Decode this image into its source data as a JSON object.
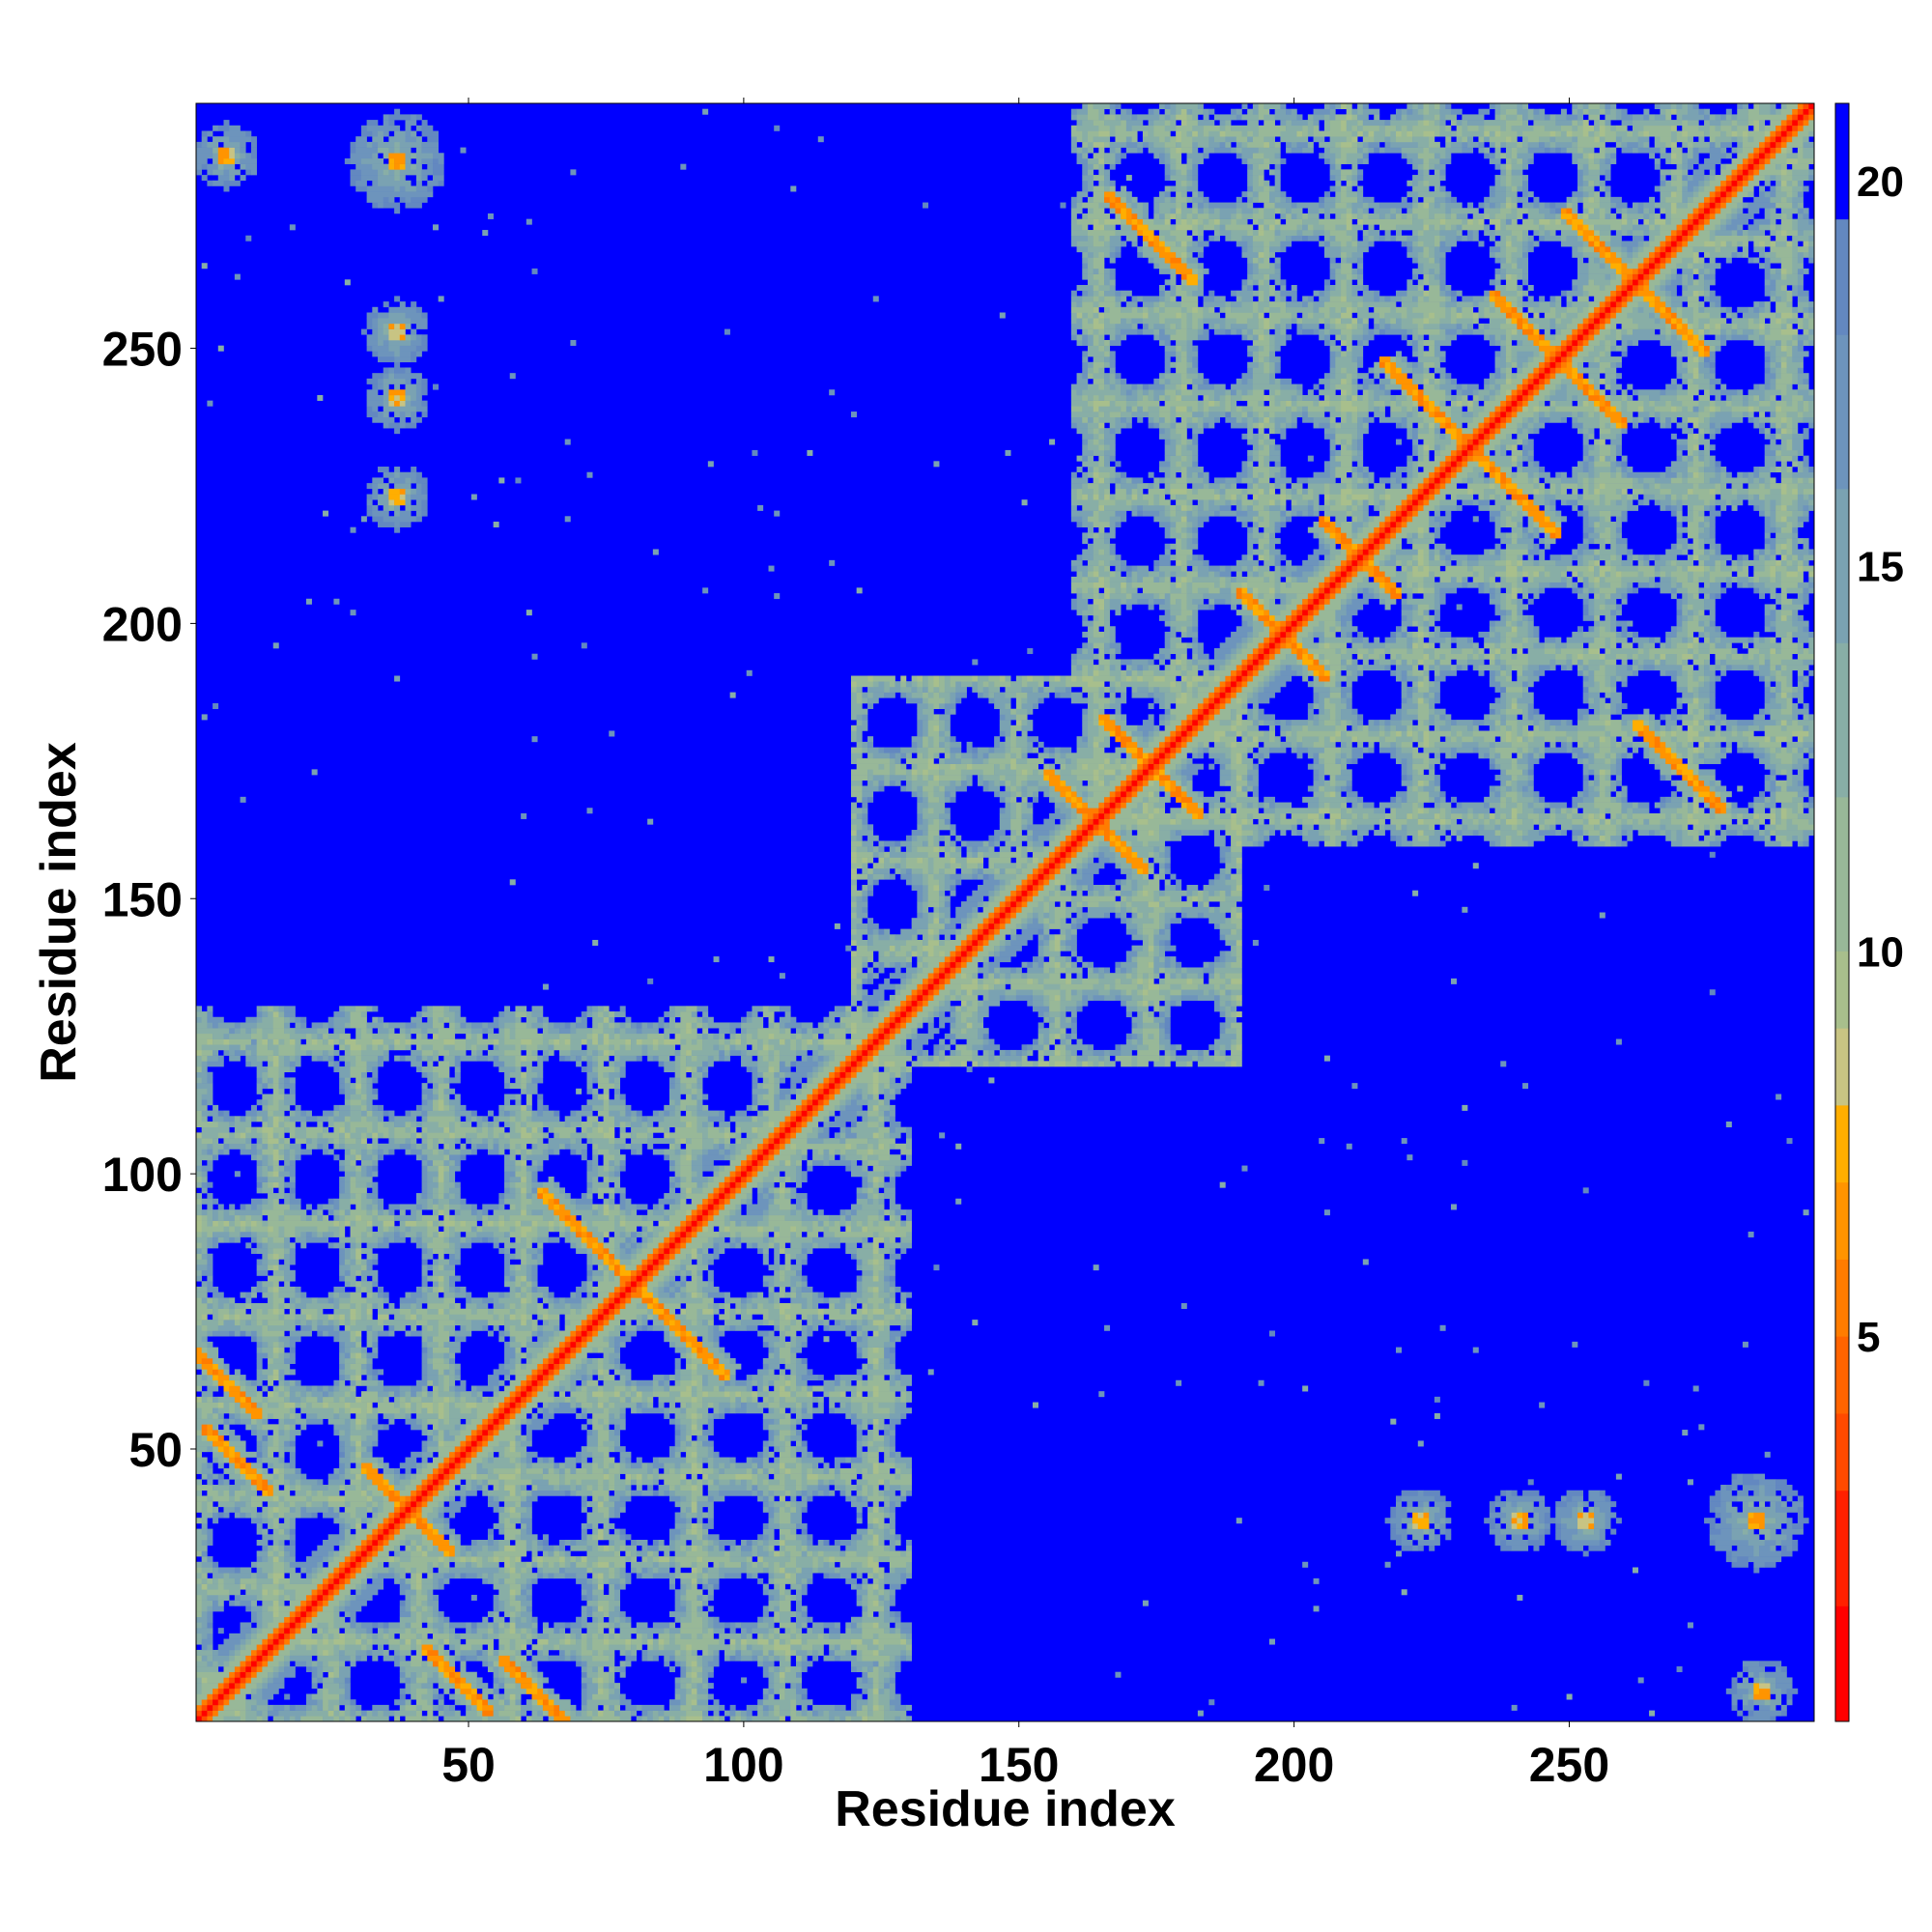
{
  "chart_data": {
    "type": "heatmap",
    "title": "",
    "xlabel": "Residue index",
    "ylabel": "Residue index",
    "xlim": [
      1,
      294
    ],
    "ylim": [
      1,
      294
    ],
    "x_ticks": [
      50,
      100,
      150,
      200,
      250
    ],
    "y_ticks": [
      50,
      100,
      150,
      200,
      250
    ],
    "value_description": "pairwise residue distance, capped at 21",
    "colorbar": {
      "range": [
        0,
        21
      ],
      "ticks": [
        5,
        10,
        15,
        20
      ],
      "levels": [
        {
          "max": 1.5,
          "color": "#ff0000"
        },
        {
          "max": 3.0,
          "color": "#ff2000"
        },
        {
          "max": 4.0,
          "color": "#ff4a00"
        },
        {
          "max": 5.0,
          "color": "#ff6400"
        },
        {
          "max": 6.0,
          "color": "#ff7c00"
        },
        {
          "max": 7.0,
          "color": "#ff9400"
        },
        {
          "max": 8.0,
          "color": "#ffae00"
        },
        {
          "max": 9.0,
          "color": "#c8c483"
        },
        {
          "max": 10.0,
          "color": "#a8bf8c"
        },
        {
          "max": 12.0,
          "color": "#98b898"
        },
        {
          "max": 14.0,
          "color": "#88aea6"
        },
        {
          "max": 16.0,
          "color": "#7aa2b2"
        },
        {
          "max": 18.0,
          "color": "#6d94bc"
        },
        {
          "max": 19.5,
          "color": "#6388c0"
        },
        {
          "max": 21.0,
          "color": "#0000ff"
        }
      ]
    },
    "contact_regions": {
      "main_diagonal": {
        "from": 1,
        "to": 294
      },
      "antiparallel_strand_pairs": [
        {
          "center": [
            39,
            39
          ],
          "half_length": 8
        },
        {
          "center": [
            72,
            88
          ],
          "half_length": 9
        },
        {
          "center": [
            88,
            72
          ],
          "half_length": 9
        },
        {
          "center": [
            164,
            164
          ],
          "half_length": 9
        },
        {
          "center": [
            174,
            174
          ],
          "half_length": 9
        },
        {
          "center": [
            198,
            198
          ],
          "half_length": 8
        },
        {
          "center": [
            212,
            212
          ],
          "half_length": 7
        },
        {
          "center": [
            232,
            232
          ],
          "half_length": 16
        },
        {
          "center": [
            248,
            248
          ],
          "half_length": 12
        },
        {
          "center": [
            262,
            262
          ],
          "half_length": 13
        },
        {
          "center": [
            174,
            270
          ],
          "half_length": 8
        },
        {
          "center": [
            270,
            174
          ],
          "half_length": 8
        },
        {
          "center": [
            8,
            48
          ],
          "half_length": 6
        },
        {
          "center": [
            48,
            8
          ],
          "half_length": 6
        },
        {
          "center": [
            6,
            62
          ],
          "half_length": 6
        },
        {
          "center": [
            62,
            6
          ],
          "half_length": 6
        },
        {
          "center": [
            46,
            8
          ],
          "half_length": 6
        },
        {
          "center": [
            64,
            8
          ],
          "half_length": 6
        },
        {
          "center": [
            88,
            64
          ],
          "half_length": 6
        }
      ],
      "contact_blobs": [
        {
          "center": [
            37,
            223
          ],
          "radius": 6
        },
        {
          "center": [
            37,
            241
          ],
          "radius": 6
        },
        {
          "center": [
            37,
            253
          ],
          "radius": 6
        },
        {
          "center": [
            223,
            37
          ],
          "radius": 6
        },
        {
          "center": [
            241,
            37
          ],
          "radius": 6
        },
        {
          "center": [
            253,
            37
          ],
          "radius": 6
        },
        {
          "center": [
            6,
            285
          ],
          "radius": 6
        },
        {
          "center": [
            285,
            6
          ],
          "radius": 6
        },
        {
          "center": [
            37,
            284
          ],
          "radius": 9
        },
        {
          "center": [
            284,
            37
          ],
          "radius": 9
        }
      ],
      "domains": [
        {
          "from": 1,
          "to": 130
        },
        {
          "from": 120,
          "to": 190
        },
        {
          "from": 160,
          "to": 294
        }
      ]
    }
  }
}
